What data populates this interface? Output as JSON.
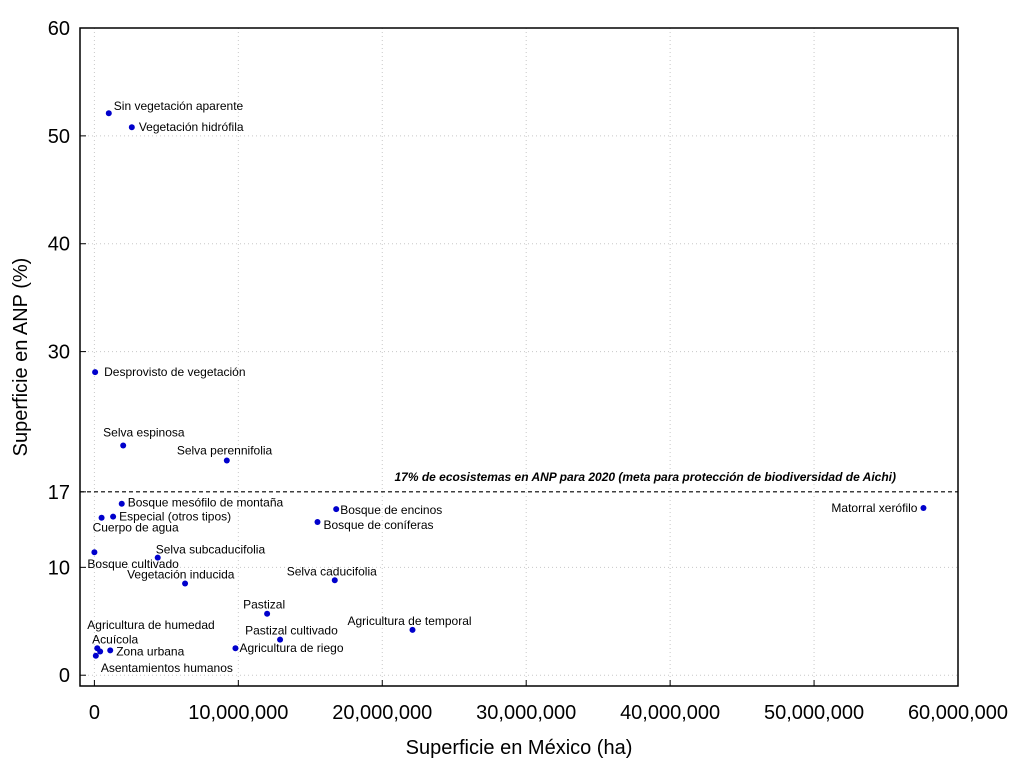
{
  "chart_data": {
    "type": "scatter",
    "xlabel": "Superficie en México (ha)",
    "ylabel": "Superficie en ANP (%)",
    "xlim": [
      -1000000,
      60000000
    ],
    "ylim": [
      -1,
      60
    ],
    "xticks": [
      0,
      10000000,
      20000000,
      30000000,
      40000000,
      50000000,
      60000000
    ],
    "xtick_labels": [
      "0",
      "10,000,000",
      "20,000,000",
      "30,000,000",
      "40,000,000",
      "50,000,000",
      "60,000,000"
    ],
    "yticks": [
      0,
      10,
      17,
      30,
      40,
      50,
      60
    ],
    "ytick_labels": [
      "0",
      "10",
      "17",
      "30",
      "40",
      "50",
      "60"
    ],
    "grid": true,
    "point_color": "#0000cc",
    "reference_line": {
      "y": 17,
      "label": "17% de ecosistemas en ANP para 2020 (meta para protección de biodiversidad de Aichi)"
    },
    "points": [
      {
        "label": "Sin vegetación aparente",
        "x": 1000000,
        "y": 52.1
      },
      {
        "label": "Vegetación hidrófila",
        "x": 2600000,
        "y": 50.8
      },
      {
        "label": "Desprovisto de vegetación",
        "x": 50000,
        "y": 28.1
      },
      {
        "label": "Selva espinosa",
        "x": 2000000,
        "y": 21.3
      },
      {
        "label": "Selva perennifolia",
        "x": 9200000,
        "y": 19.9
      },
      {
        "label": "Bosque mesófilo de montaña",
        "x": 1900000,
        "y": 15.9
      },
      {
        "label": "Bosque de encinos",
        "x": 16800000,
        "y": 15.4
      },
      {
        "label": "Especial (otros tipos)",
        "x": 1300000,
        "y": 14.7
      },
      {
        "label": "Cuerpo de agua",
        "x": 500000,
        "y": 14.6
      },
      {
        "label": "Bosque de coníferas",
        "x": 15500000,
        "y": 14.2
      },
      {
        "label": "Matorral xerófilo",
        "x": 57600000,
        "y": 15.5
      },
      {
        "label": "Bosque cultivado",
        "x": 0,
        "y": 11.4
      },
      {
        "label": "Selva subcaducifolia",
        "x": 4400000,
        "y": 10.9
      },
      {
        "label": "Vegetación inducida",
        "x": 6300000,
        "y": 8.5
      },
      {
        "label": "Selva caducifolia",
        "x": 16700000,
        "y": 8.8
      },
      {
        "label": "Pastizal",
        "x": 12000000,
        "y": 5.7
      },
      {
        "label": "Agricultura de temporal",
        "x": 22100000,
        "y": 4.2
      },
      {
        "label": "Pastizal cultivado",
        "x": 12900000,
        "y": 3.3
      },
      {
        "label": "Agricultura de riego",
        "x": 9800000,
        "y": 2.5
      },
      {
        "label": "Agricultura de humedad",
        "x": 200000,
        "y": 2.5
      },
      {
        "label": "Acuícola",
        "x": 400000,
        "y": 2.2
      },
      {
        "label": "Zona urbana",
        "x": 1100000,
        "y": 2.3
      },
      {
        "label": "Asentamientos humanos",
        "x": 100000,
        "y": 1.8
      }
    ]
  }
}
